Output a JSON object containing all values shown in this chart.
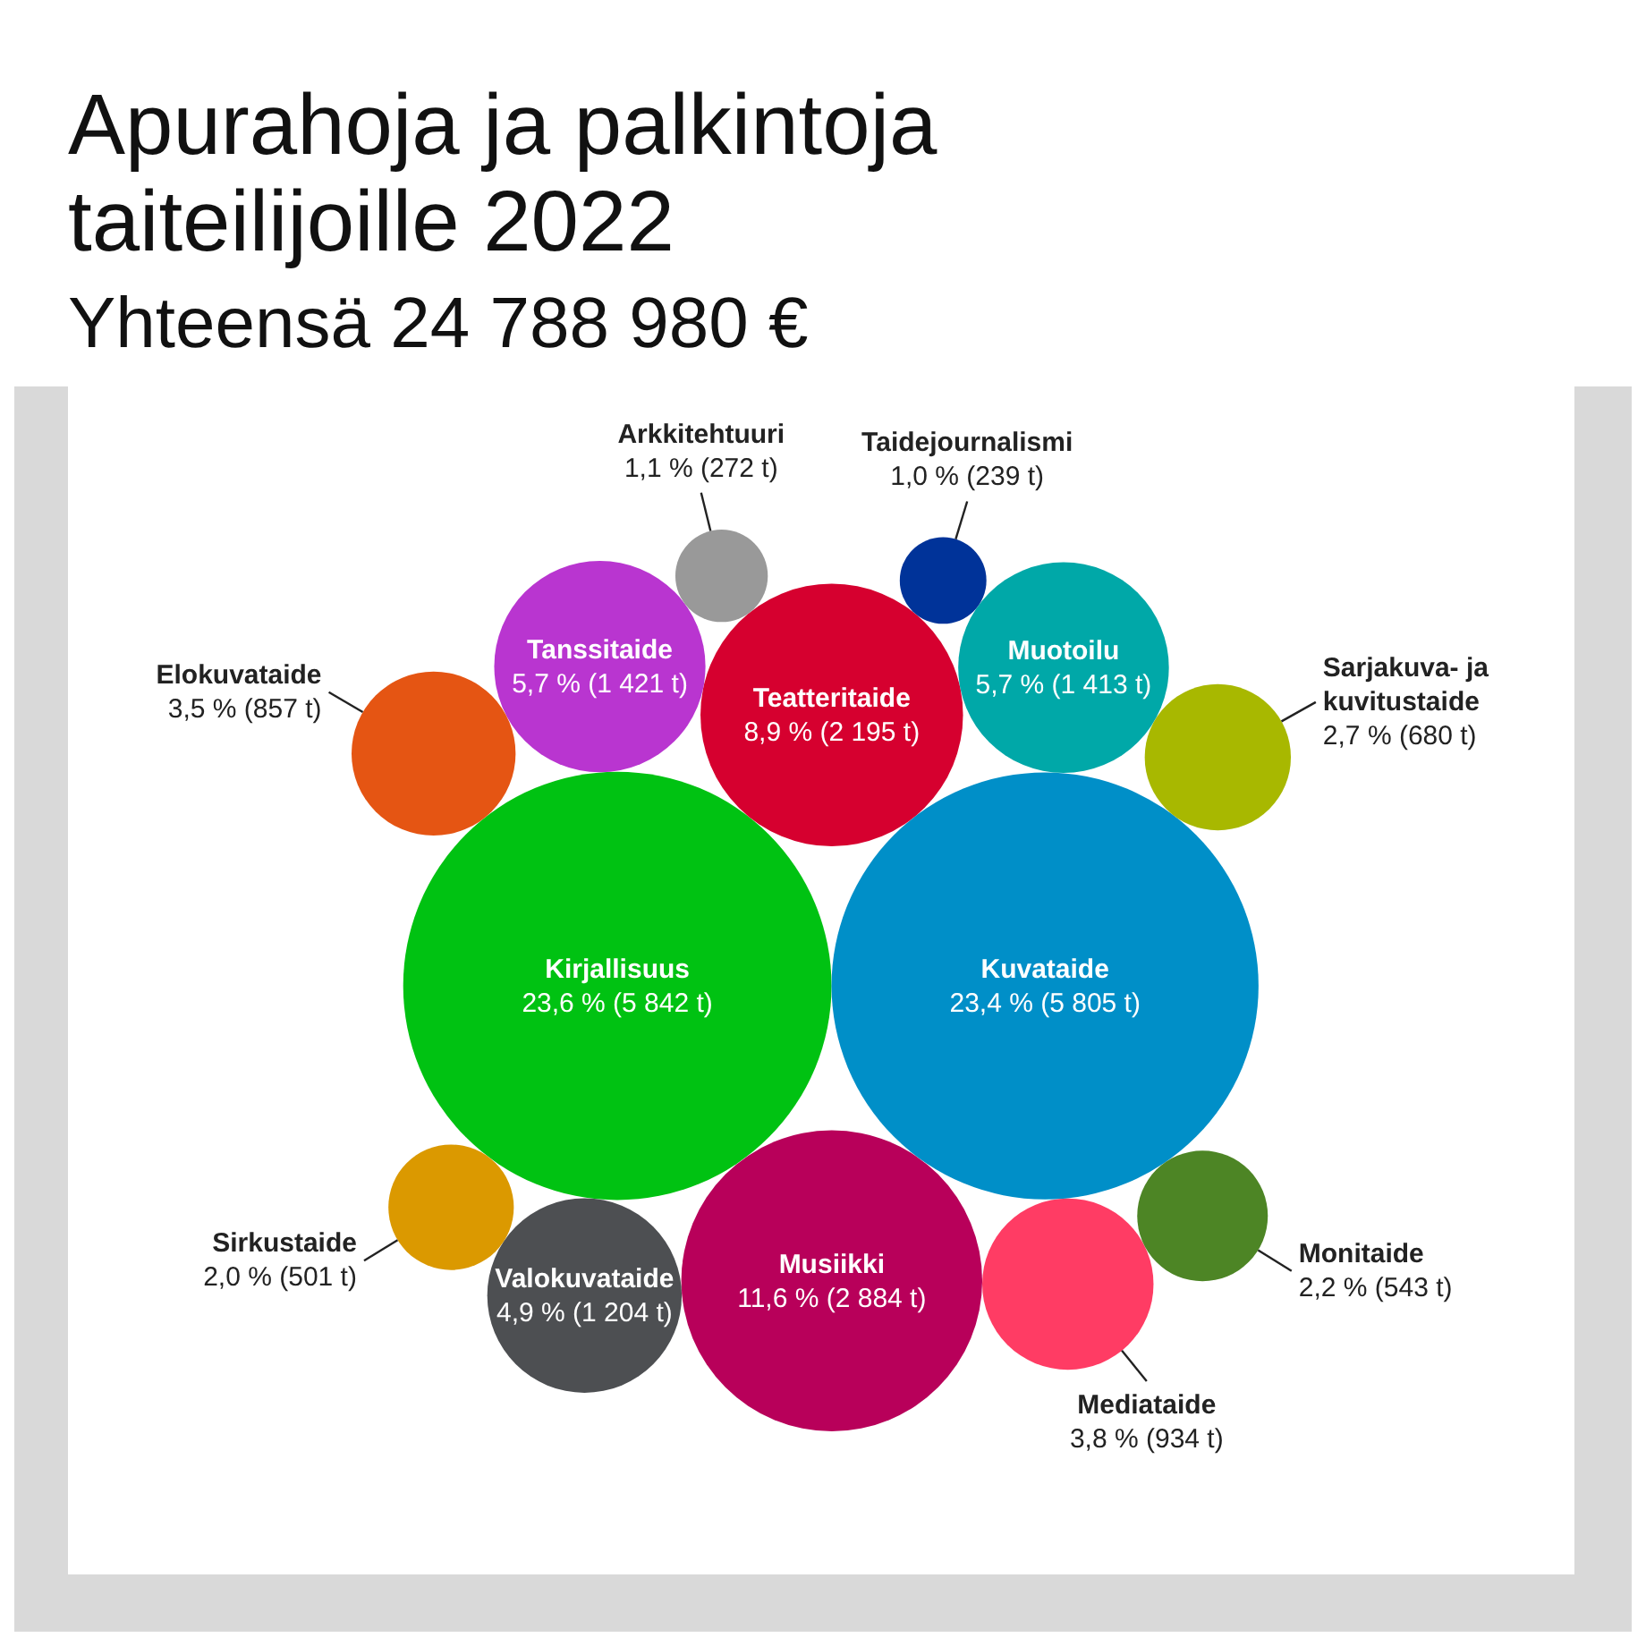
{
  "chart_data": {
    "type": "other",
    "title": "Apurahoja ja palkintoja taiteilijoille 2022",
    "subtitle": "Yhteensä 24 788 980 €",
    "categories": [
      "Kirjallisuus",
      "Kuvataide",
      "Musiikki",
      "Teatteritaide",
      "Tanssitaide",
      "Muotoilu",
      "Valokuvataide",
      "Mediataide",
      "Elokuvataide",
      "Sarjakuva- ja kuvitustaide",
      "Monitaide",
      "Sirkustaide",
      "Arkkitehtuuri",
      "Taidejournalismi"
    ],
    "values": [
      5842,
      5805,
      2884,
      2195,
      1421,
      1413,
      1204,
      934,
      857,
      680,
      543,
      501,
      272,
      239
    ],
    "value_labels": [
      "23,6 % (5 842 t)",
      "23,4 % (5 805 t)",
      "11,6 % (2 884 t)",
      "8,9 % (2 195 t)",
      "5,7 % (1 421 t)",
      "5,7 % (1 413 t)",
      "4,9 % (1 204 t)",
      "3,8 % (934 t)",
      "3,5 % (857 t)",
      "2,7 % (680 t)",
      "2,2 % (543 t)",
      "2,0 % (501 t)",
      "1,1 % (272 t)",
      "1,0 % (239 t)"
    ],
    "colors": [
      "#00c212",
      "#008fc8",
      "#b8005a",
      "#d6002f",
      "#b935d0",
      "#00a8a8",
      "#4d4f52",
      "#ff3c64",
      "#e55513",
      "#a8b800",
      "#4d8525",
      "#db9900",
      "#999999",
      "#003399"
    ]
  }
}
